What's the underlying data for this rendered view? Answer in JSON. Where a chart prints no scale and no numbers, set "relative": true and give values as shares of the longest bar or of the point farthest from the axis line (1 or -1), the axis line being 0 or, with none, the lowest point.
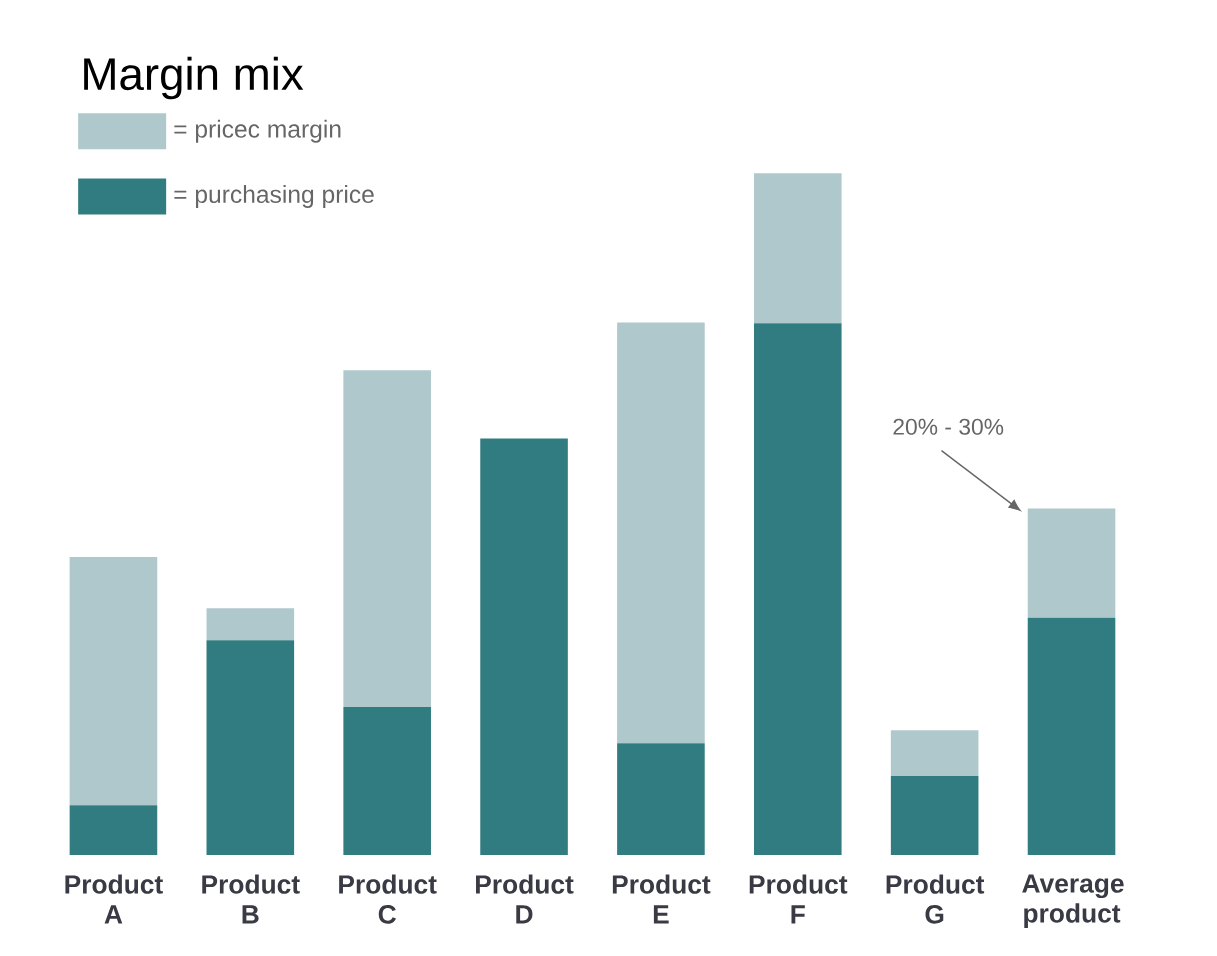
{
  "chart_data": {
    "type": "bar",
    "title": "Margin mix",
    "stacked": true,
    "relative": true,
    "categories": [
      "Product A",
      "Product B",
      "Product C",
      "Product D",
      "Product E",
      "Product F",
      "Product G",
      "Average product"
    ],
    "series": [
      {
        "name": "= purchasing price",
        "color": "#317c80",
        "values": [
          0.073,
          0.315,
          0.217,
          0.611,
          0.164,
          0.78,
          0.116,
          0.348
        ]
      },
      {
        "name": "= pricec margin",
        "color": "#afc8cc",
        "values": [
          0.364,
          0.047,
          0.494,
          0,
          0.617,
          0.22,
          0.067,
          0.16
        ]
      }
    ],
    "annotations": [
      "20% - 30%"
    ],
    "legend": "top left"
  }
}
